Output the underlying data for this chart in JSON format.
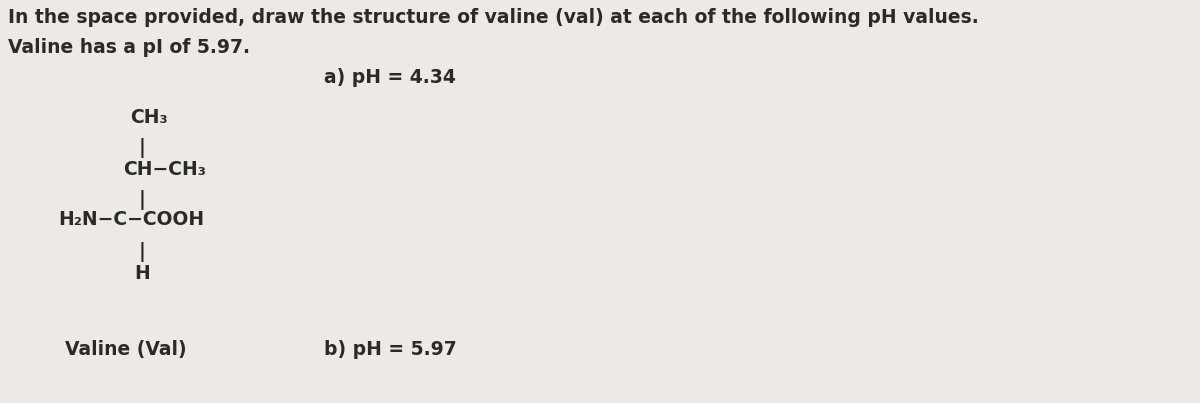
{
  "background_color": "#ede9e4",
  "text_color": "#2a2a2a",
  "title_line1": "In the space provided, draw the structure of valine (val) at each of the following pH values.",
  "title_line2": "Valine has a pI of 5.97.",
  "label_a": "a) pH = 4.34",
  "label_b": "b) pH = 5.97",
  "valine_label": "Valine (Val)",
  "fontsize_title": 13.5,
  "fontsize_structure": 13.5,
  "fontsize_labels": 13.5,
  "fontsize_valine": 13.5,
  "fig_width": 12.0,
  "fig_height": 4.03,
  "dpi": 100
}
